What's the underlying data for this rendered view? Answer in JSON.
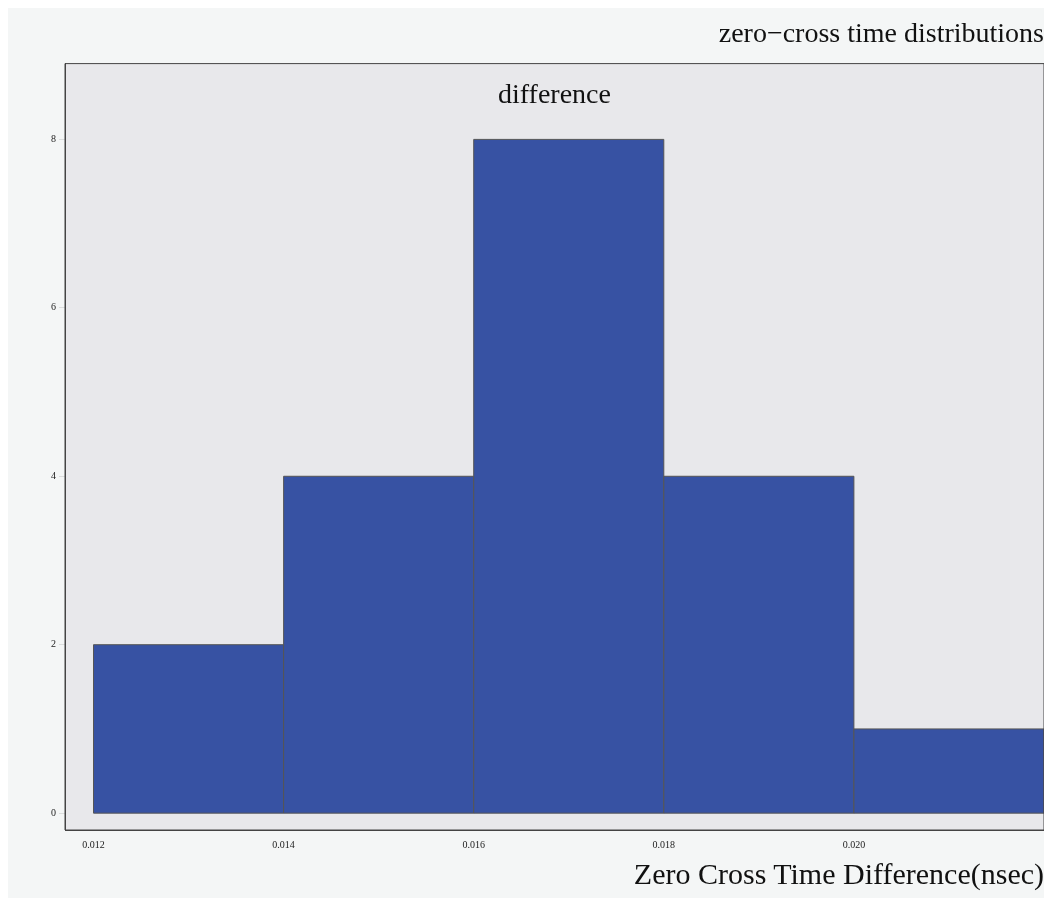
{
  "chart_data": {
    "type": "histogram",
    "title": "zero−cross time distributions",
    "xlabel": "Zero Cross Time Difference(nsec)",
    "bins": [
      0.012,
      0.014,
      0.016,
      0.018,
      0.02,
      0.022
    ],
    "values": [
      2,
      4,
      8,
      4,
      1
    ],
    "color": "#3752a3",
    "annotations": [
      "difference"
    ],
    "xlim": [
      0.0117,
      0.022
    ],
    "xticks": [
      0.012,
      0.014,
      0.016,
      0.018,
      {
        "value": 0.02,
        "label": "0.020"
      }
    ],
    "ylim": [
      -0.2,
      8.9
    ],
    "yticks": [
      0,
      2,
      4,
      6,
      8
    ],
    "grid": false,
    "legend": false
  }
}
